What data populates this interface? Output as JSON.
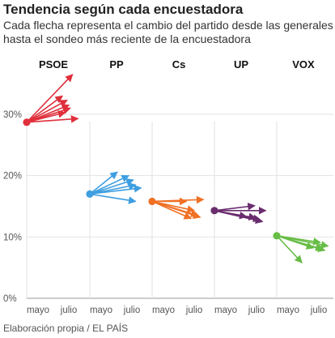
{
  "chart_data": {
    "type": "line",
    "title": "Tendencia según cada encuestadora",
    "subtitle": "Cada flecha representa el cambio del partido desde las generales hasta el sondeo más reciente de la encuestadora",
    "source": "Elaboración propia / EL PAÍS",
    "y_ticks": [
      "0%",
      "10%",
      "20%",
      "30%"
    ],
    "ylim": [
      0,
      30
    ],
    "x_ticks": [
      "mayo",
      "julio"
    ],
    "panels": [
      {
        "name": "PSOE",
        "color": "#e0303c",
        "start": 28.7,
        "end_points": [
          {
            "x": 1.0,
            "y": 36.5
          },
          {
            "x": 0.78,
            "y": 33.0
          },
          {
            "x": 0.88,
            "y": 32.3
          },
          {
            "x": 0.92,
            "y": 31.5
          },
          {
            "x": 0.84,
            "y": 30.3
          },
          {
            "x": 0.95,
            "y": 31.0
          },
          {
            "x": 1.12,
            "y": 29.3
          }
        ]
      },
      {
        "name": "PP",
        "color": "#3d9ee0",
        "start": 17.0,
        "end_points": [
          {
            "x": 0.6,
            "y": 20.6
          },
          {
            "x": 0.85,
            "y": 20.0
          },
          {
            "x": 0.95,
            "y": 19.3
          },
          {
            "x": 1.0,
            "y": 18.5
          },
          {
            "x": 1.12,
            "y": 18.0
          },
          {
            "x": 1.0,
            "y": 15.8
          }
        ]
      },
      {
        "name": "Cs",
        "color": "#f07024",
        "start": 15.8,
        "end_points": [
          {
            "x": 0.75,
            "y": 15.8
          },
          {
            "x": 1.12,
            "y": 16.1
          },
          {
            "x": 0.92,
            "y": 14.3
          },
          {
            "x": 1.0,
            "y": 13.5
          },
          {
            "x": 1.05,
            "y": 13.2
          },
          {
            "x": 0.85,
            "y": 13.0
          }
        ]
      },
      {
        "name": "UP",
        "color": "#6a2d6e",
        "start": 14.3,
        "end_points": [
          {
            "x": 0.88,
            "y": 15.1
          },
          {
            "x": 1.12,
            "y": 14.3
          },
          {
            "x": 0.7,
            "y": 13.3
          },
          {
            "x": 0.9,
            "y": 13.1
          },
          {
            "x": 1.0,
            "y": 12.8
          },
          {
            "x": 1.05,
            "y": 12.5
          }
        ]
      },
      {
        "name": "VOX",
        "color": "#67bd45",
        "start": 10.2,
        "end_points": [
          {
            "x": 0.55,
            "y": 5.8
          },
          {
            "x": 0.8,
            "y": 8.2
          },
          {
            "x": 1.12,
            "y": 8.5
          },
          {
            "x": 0.95,
            "y": 9.1
          },
          {
            "x": 1.0,
            "y": 8.0
          },
          {
            "x": 1.05,
            "y": 7.8
          }
        ]
      }
    ]
  }
}
